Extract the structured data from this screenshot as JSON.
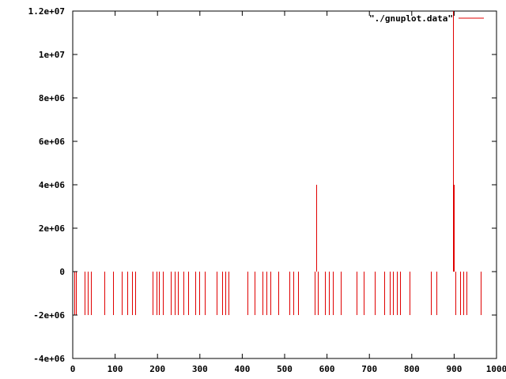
{
  "chart_data": {
    "type": "line",
    "title": "",
    "xlabel": "",
    "ylabel": "",
    "xlim": [
      0,
      1000
    ],
    "ylim": [
      -4000000,
      12000000
    ],
    "x_ticks": [
      0,
      100,
      200,
      300,
      400,
      500,
      600,
      700,
      800,
      900,
      1000
    ],
    "x_tick_labels": [
      "0",
      "100",
      "200",
      "300",
      "400",
      "500",
      "600",
      "700",
      "800",
      "900",
      "1000"
    ],
    "y_ticks": [
      -4000000,
      -2000000,
      0,
      2000000,
      4000000,
      6000000,
      8000000,
      10000000,
      12000000
    ],
    "y_tick_labels": [
      "-4e+06",
      "-2e+06",
      "0",
      "2e+06",
      "4e+06",
      "6e+06",
      "8e+06",
      "1e+07",
      "1.2e+07"
    ],
    "grid": false,
    "legend_position": "top-right",
    "series": [
      {
        "name": "\"./gnuplot.data\"",
        "color": "#e00000",
        "style": "impulses",
        "spikes": [
          {
            "x": 3,
            "y": -2000000
          },
          {
            "x": 5,
            "y": 0
          },
          {
            "x": 8,
            "y": -2000000
          },
          {
            "x": 22,
            "y": 0
          },
          {
            "x": 28,
            "y": -2000000
          },
          {
            "x": 32,
            "y": 0
          },
          {
            "x": 35,
            "y": -2000000
          },
          {
            "x": 38,
            "y": 0
          },
          {
            "x": 42,
            "y": -2000000
          },
          {
            "x": 45,
            "y": 0
          },
          {
            "x": 75,
            "y": -2000000
          },
          {
            "x": 92,
            "y": 0
          },
          {
            "x": 96,
            "y": -2000000
          },
          {
            "x": 110,
            "y": 0
          },
          {
            "x": 116,
            "y": -2000000
          },
          {
            "x": 123,
            "y": 0
          },
          {
            "x": 129,
            "y": -2000000
          },
          {
            "x": 134,
            "y": 0
          },
          {
            "x": 139,
            "y": -2000000
          },
          {
            "x": 143,
            "y": 0
          },
          {
            "x": 147,
            "y": -2000000
          },
          {
            "x": 185,
            "y": 0
          },
          {
            "x": 189,
            "y": -2000000
          },
          {
            "x": 193,
            "y": 0
          },
          {
            "x": 197,
            "y": -2000000
          },
          {
            "x": 200,
            "y": 0
          },
          {
            "x": 204,
            "y": -2000000
          },
          {
            "x": 209,
            "y": 0
          },
          {
            "x": 213,
            "y": -2000000
          },
          {
            "x": 225,
            "y": 0
          },
          {
            "x": 232,
            "y": -2000000
          },
          {
            "x": 236,
            "y": 0
          },
          {
            "x": 240,
            "y": -2000000
          },
          {
            "x": 244,
            "y": 0
          },
          {
            "x": 248,
            "y": -2000000
          },
          {
            "x": 258,
            "y": 0
          },
          {
            "x": 262,
            "y": -2000000
          },
          {
            "x": 266,
            "y": 0
          },
          {
            "x": 272,
            "y": -2000000
          },
          {
            "x": 283,
            "y": 0
          },
          {
            "x": 290,
            "y": -2000000
          },
          {
            "x": 294,
            "y": 0
          },
          {
            "x": 298,
            "y": -2000000
          },
          {
            "x": 305,
            "y": 0
          },
          {
            "x": 311,
            "y": -2000000
          },
          {
            "x": 335,
            "y": 0
          },
          {
            "x": 340,
            "y": -2000000
          },
          {
            "x": 350,
            "y": 0
          },
          {
            "x": 353,
            "y": -2000000
          },
          {
            "x": 356,
            "y": 0
          },
          {
            "x": 360,
            "y": -2000000
          },
          {
            "x": 364,
            "y": 0
          },
          {
            "x": 368,
            "y": -2000000
          },
          {
            "x": 407,
            "y": 0
          },
          {
            "x": 412,
            "y": -2000000
          },
          {
            "x": 425,
            "y": 0
          },
          {
            "x": 430,
            "y": -2000000
          },
          {
            "x": 445,
            "y": 0
          },
          {
            "x": 448,
            "y": -2000000
          },
          {
            "x": 452,
            "y": 0
          },
          {
            "x": 457,
            "y": -2000000
          },
          {
            "x": 462,
            "y": 0
          },
          {
            "x": 467,
            "y": -2000000
          },
          {
            "x": 480,
            "y": 0
          },
          {
            "x": 486,
            "y": -2000000
          },
          {
            "x": 508,
            "y": 0
          },
          {
            "x": 512,
            "y": -2000000
          },
          {
            "x": 516,
            "y": 0
          },
          {
            "x": 520,
            "y": -2000000
          },
          {
            "x": 528,
            "y": 0
          },
          {
            "x": 532,
            "y": -2000000
          },
          {
            "x": 540,
            "y": 0
          },
          {
            "x": 570,
            "y": -2000000
          },
          {
            "x": 575,
            "y": 4000000
          },
          {
            "x": 579,
            "y": -2000000
          },
          {
            "x": 590,
            "y": 0
          },
          {
            "x": 595,
            "y": -2000000
          },
          {
            "x": 600,
            "y": 0
          },
          {
            "x": 605,
            "y": -2000000
          },
          {
            "x": 610,
            "y": 0
          },
          {
            "x": 614,
            "y": -2000000
          },
          {
            "x": 625,
            "y": 0
          },
          {
            "x": 632,
            "y": -2000000
          },
          {
            "x": 640,
            "y": 0
          },
          {
            "x": 670,
            "y": -2000000
          },
          {
            "x": 683,
            "y": 0
          },
          {
            "x": 687,
            "y": -2000000
          },
          {
            "x": 700,
            "y": 0
          },
          {
            "x": 712,
            "y": -2000000
          },
          {
            "x": 730,
            "y": 0
          },
          {
            "x": 736,
            "y": -2000000
          },
          {
            "x": 742,
            "y": 0
          },
          {
            "x": 748,
            "y": -2000000
          },
          {
            "x": 752,
            "y": 0
          },
          {
            "x": 756,
            "y": -2000000
          },
          {
            "x": 760,
            "y": 0
          },
          {
            "x": 764,
            "y": -2000000
          },
          {
            "x": 768,
            "y": 0
          },
          {
            "x": 772,
            "y": -2000000
          },
          {
            "x": 785,
            "y": 0
          },
          {
            "x": 795,
            "y": -2000000
          },
          {
            "x": 805,
            "y": 0
          },
          {
            "x": 845,
            "y": -2000000
          },
          {
            "x": 852,
            "y": 0
          },
          {
            "x": 858,
            "y": -2000000
          },
          {
            "x": 898,
            "y": 12000000
          },
          {
            "x": 900,
            "y": 4000000
          },
          {
            "x": 903,
            "y": -2000000
          },
          {
            "x": 908,
            "y": 0
          },
          {
            "x": 914,
            "y": -2000000
          },
          {
            "x": 918,
            "y": 0
          },
          {
            "x": 922,
            "y": -2000000
          },
          {
            "x": 926,
            "y": 0
          },
          {
            "x": 930,
            "y": -2000000
          },
          {
            "x": 955,
            "y": 0
          },
          {
            "x": 962,
            "y": -2000000
          },
          {
            "x": 968,
            "y": 0
          }
        ]
      }
    ]
  }
}
